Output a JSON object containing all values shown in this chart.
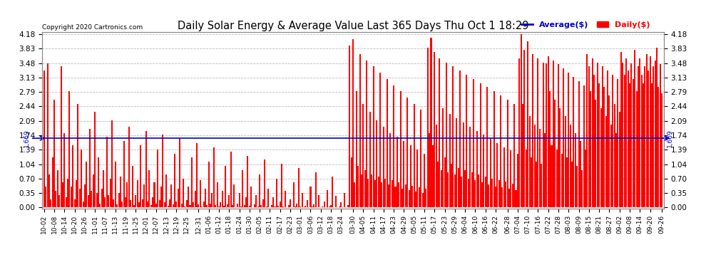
{
  "title": "Daily Solar Energy & Average Value Last 365 Days Thu Oct 1 18:29",
  "copyright": "Copyright 2020 Cartronics.com",
  "average_value": 1.669,
  "average_label": "1,669",
  "bar_color": "#ff0000",
  "avg_line_color": "#0000cc",
  "background_color": "#ffffff",
  "grid_color": "#bbbbbb",
  "yticks": [
    0.0,
    0.35,
    0.7,
    1.04,
    1.39,
    1.74,
    2.09,
    2.44,
    2.79,
    3.13,
    3.48,
    3.83,
    4.18
  ],
  "ymax": 4.18,
  "ymin": 0.0,
  "legend_avg_label": "Average($)",
  "legend_daily_label": "Daily($)",
  "xtick_labels": [
    "10-02",
    "10-08",
    "10-14",
    "10-20",
    "10-26",
    "11-01",
    "11-07",
    "11-13",
    "11-19",
    "11-25",
    "12-01",
    "12-07",
    "12-13",
    "12-19",
    "12-25",
    "12-31",
    "01-06",
    "01-12",
    "01-18",
    "01-24",
    "01-30",
    "02-05",
    "02-11",
    "02-17",
    "02-23",
    "03-01",
    "03-06",
    "03-12",
    "03-18",
    "03-24",
    "03-30",
    "04-05",
    "04-11",
    "04-17",
    "04-23",
    "04-29",
    "05-05",
    "05-11",
    "05-17",
    "05-23",
    "05-29",
    "06-04",
    "06-10",
    "06-16",
    "06-22",
    "06-28",
    "07-04",
    "07-10",
    "07-16",
    "07-22",
    "07-28",
    "08-03",
    "08-09",
    "08-15",
    "08-21",
    "08-27",
    "09-02",
    "09-08",
    "09-14",
    "09-20",
    "09-26"
  ],
  "daily_values": [
    3.3,
    0.5,
    3.48,
    0.8,
    0.2,
    1.2,
    2.6,
    0.4,
    0.9,
    0.3,
    3.4,
    0.6,
    1.8,
    0.25,
    0.7,
    2.8,
    0.5,
    1.5,
    0.2,
    0.65,
    2.5,
    0.45,
    1.4,
    0.15,
    0.55,
    1.1,
    0.3,
    1.9,
    0.4,
    0.8,
    2.3,
    0.35,
    1.2,
    0.1,
    0.45,
    0.9,
    0.25,
    1.7,
    0.3,
    0.7,
    2.1,
    0.2,
    1.1,
    0.08,
    0.35,
    0.75,
    0.15,
    1.6,
    0.25,
    0.6,
    1.95,
    0.18,
    1.0,
    0.06,
    0.3,
    0.65,
    0.12,
    1.5,
    0.2,
    0.55,
    1.85,
    0.15,
    0.9,
    0.05,
    0.25,
    0.6,
    0.1,
    1.4,
    0.18,
    0.5,
    1.75,
    0.12,
    0.8,
    0.04,
    0.2,
    0.55,
    0.08,
    1.3,
    0.15,
    0.45,
    1.65,
    0.1,
    0.7,
    0.03,
    0.18,
    0.5,
    0.06,
    1.2,
    0.12,
    0.4,
    1.55,
    0.08,
    0.65,
    0.02,
    0.15,
    0.45,
    0.05,
    1.1,
    0.1,
    0.35,
    1.45,
    0.06,
    0.6,
    0.02,
    0.12,
    0.4,
    0.04,
    1.0,
    0.08,
    0.3,
    1.35,
    0.05,
    0.55,
    0.01,
    0.1,
    0.35,
    0.03,
    0.9,
    0.06,
    0.25,
    1.25,
    0.04,
    0.5,
    0.01,
    0.08,
    0.3,
    0.02,
    0.8,
    0.05,
    0.2,
    1.15,
    0.03,
    0.45,
    0.01,
    0.06,
    0.25,
    0.02,
    0.7,
    0.04,
    0.15,
    1.05,
    0.02,
    0.4,
    0.01,
    0.05,
    0.2,
    0.01,
    0.6,
    0.03,
    0.1,
    0.95,
    0.02,
    0.35,
    0.01,
    0.04,
    0.18,
    0.01,
    0.5,
    0.02,
    0.08,
    0.85,
    0.01,
    0.3,
    0.01,
    0.03,
    0.15,
    0.01,
    0.42,
    0.02,
    0.06,
    0.75,
    0.01,
    0.28,
    0.005,
    0.03,
    0.12,
    0.01,
    0.35,
    0.01,
    0.05,
    3.9,
    1.2,
    4.05,
    0.6,
    2.8,
    1.0,
    3.7,
    0.8,
    2.5,
    0.9,
    3.55,
    0.7,
    2.3,
    0.8,
    3.4,
    0.65,
    2.1,
    0.75,
    3.25,
    0.6,
    1.95,
    0.7,
    3.1,
    0.55,
    1.8,
    0.65,
    2.95,
    0.5,
    1.7,
    0.6,
    2.8,
    0.45,
    1.6,
    0.55,
    2.65,
    0.42,
    1.5,
    0.52,
    2.5,
    0.38,
    1.4,
    0.48,
    2.35,
    0.35,
    1.3,
    0.45,
    3.85,
    1.8,
    4.1,
    1.5,
    3.75,
    2.0,
    1.1,
    3.6,
    0.9,
    2.4,
    1.2,
    3.5,
    0.85,
    2.25,
    1.05,
    3.4,
    0.8,
    2.15,
    0.95,
    3.3,
    0.75,
    2.05,
    0.9,
    3.2,
    0.7,
    1.95,
    0.85,
    3.1,
    0.65,
    1.85,
    0.8,
    3.0,
    0.6,
    1.75,
    0.75,
    2.9,
    0.55,
    1.65,
    0.7,
    2.8,
    0.5,
    1.55,
    0.65,
    2.7,
    0.48,
    1.45,
    0.62,
    2.6,
    0.45,
    1.38,
    0.58,
    2.5,
    0.42,
    1.3,
    3.6,
    4.18,
    2.5,
    3.8,
    1.4,
    4.0,
    2.2,
    1.2,
    3.7,
    2.0,
    1.1,
    3.6,
    1.9,
    1.05,
    3.5,
    1.8,
    3.48,
    3.65,
    2.8,
    1.5,
    3.55,
    2.6,
    1.4,
    3.45,
    2.4,
    1.3,
    3.35,
    2.2,
    1.2,
    3.25,
    2.0,
    1.1,
    3.15,
    1.8,
    1.0,
    3.05,
    1.6,
    0.9,
    2.95,
    1.4,
    3.7,
    3.4,
    2.8,
    3.6,
    3.2,
    2.6,
    3.5,
    3.0,
    2.4,
    3.4,
    2.9,
    2.2,
    3.3,
    2.7,
    2.0,
    3.2,
    2.5,
    1.8,
    3.1,
    2.3,
    3.75,
    3.5,
    3.2,
    3.6,
    3.3,
    3.0,
    3.48,
    3.1,
    3.8,
    2.8,
    3.4,
    3.6,
    3.2,
    3.0,
    3.4,
    3.7,
    3.3,
    3.65,
    3.0,
    3.4,
    3.55,
    3.85,
    2.9,
    3.45,
    2.75,
    3.35,
    2.65,
    3.2,
    2.55,
    3.1,
    3.48
  ]
}
